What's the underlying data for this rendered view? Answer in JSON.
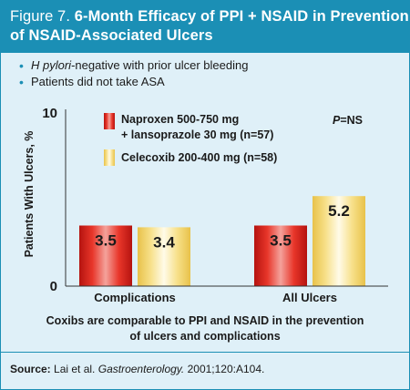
{
  "figure": {
    "label": "Figure 7.",
    "title_part1": "6-Month Efficacy of PPI + NSAID in Prevention",
    "title_part2": "of NSAID-Associated Ulcers"
  },
  "bullets": [
    {
      "italic": "H pylori",
      "text": "-negative with prior ulcer bleeding"
    },
    {
      "italic": "",
      "text": "Patients did not take ASA"
    }
  ],
  "chart_data": {
    "type": "bar",
    "ylabel": "Patients With Ulcers, %",
    "ylim": [
      0,
      10
    ],
    "yticks": [
      "0",
      "10"
    ],
    "categories": [
      "Complications",
      "All Ulcers"
    ],
    "series": [
      {
        "name": "Naproxen 500-750 mg + lansoprazole 30 mg (n=57)",
        "legend_line1": "Naproxen 500-750 mg",
        "legend_line2": "+ lansoprazole 30 mg (n=57)",
        "values": [
          3.5,
          3.5
        ],
        "color": "#e0281f"
      },
      {
        "name": "Celecoxib 200-400 mg (n=58)",
        "legend_line1": "Celecoxib 200-400 mg (n=58)",
        "legend_line2": "",
        "values": [
          3.4,
          5.2
        ],
        "color": "#f6df7a"
      }
    ],
    "data_labels": [
      [
        "3.5",
        "3.5"
      ],
      [
        "3.4",
        "5.2"
      ]
    ],
    "annotation_italic": "P",
    "annotation_text": "=NS",
    "legend_position": "top"
  },
  "caption": {
    "line1": "Coxibs are comparable to PPI and NSAID in the prevention",
    "line2": "of ulcers and complications"
  },
  "source": {
    "label": "Source:",
    "authors": "Lai et al.",
    "journal": "Gastroenterology.",
    "citation": "2001;120:A104."
  },
  "colors": {
    "frame": "#1b8fb5",
    "panel": "#dff0f8",
    "naproxen_bar": "#e0281f",
    "celecoxib_bar": "#f6df7a"
  }
}
